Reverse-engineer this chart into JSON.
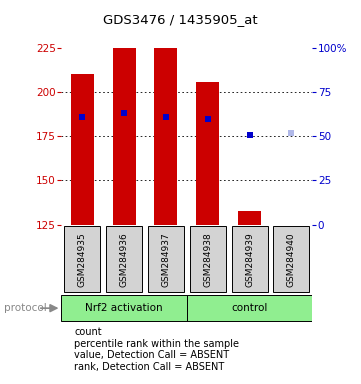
{
  "title": "GDS3476 / 1435905_at",
  "samples": [
    "GSM284935",
    "GSM284936",
    "GSM284937",
    "GSM284938",
    "GSM284939",
    "GSM284940"
  ],
  "bar_values": [
    210,
    225,
    225,
    206,
    133,
    125
  ],
  "bar_colors": [
    "#cc0000",
    "#cc0000",
    "#cc0000",
    "#cc0000",
    "#cc0000",
    "#ffb6c1"
  ],
  "rank_values": [
    186,
    188,
    186,
    185,
    176,
    177
  ],
  "rank_colors": [
    "#0000cc",
    "#0000cc",
    "#0000cc",
    "#0000cc",
    "#0000cc",
    "#b0b8e8"
  ],
  "ymin": 125,
  "ymax": 225,
  "yticks": [
    125,
    150,
    175,
    200,
    225
  ],
  "y2ticks": [
    0,
    25,
    50,
    75,
    100
  ],
  "y2labels": [
    "0",
    "25",
    "50",
    "75",
    "100%"
  ],
  "ylabel_color": "#cc0000",
  "y2label_color": "#0000cc",
  "background_color": "#ffffff",
  "legend_items": [
    {
      "color": "#cc0000",
      "label": "count"
    },
    {
      "color": "#0000cc",
      "label": "percentile rank within the sample"
    },
    {
      "color": "#ffb6c1",
      "label": "value, Detection Call = ABSENT"
    },
    {
      "color": "#b0b8e8",
      "label": "rank, Detection Call = ABSENT"
    }
  ]
}
